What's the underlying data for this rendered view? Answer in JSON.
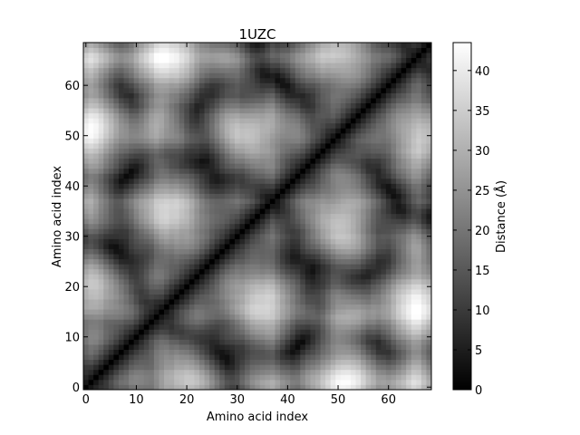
{
  "chart_data": {
    "type": "heatmap",
    "title": "1UZC",
    "xlabel": "Amino acid index",
    "ylabel": "Amino acid index",
    "n_residues": 69,
    "xlim": [
      0,
      69
    ],
    "ylim": [
      0,
      69
    ],
    "x_ticks": [
      "0",
      "10",
      "20",
      "30",
      "40",
      "50",
      "60"
    ],
    "y_ticks": [
      "0",
      "10",
      "20",
      "30",
      "40",
      "50",
      "60"
    ],
    "colormap": "gray",
    "colorbar": {
      "label": "Distance (Å)",
      "range": [
        0,
        43.5
      ],
      "ticks": [
        "0",
        "5",
        "10",
        "15",
        "20",
        "25",
        "30",
        "35",
        "40"
      ]
    },
    "origin": "lower",
    "diagonal_value": 0,
    "description_of_values": "symmetric pairwise C-alpha distance matrix; zero on diagonal"
  }
}
